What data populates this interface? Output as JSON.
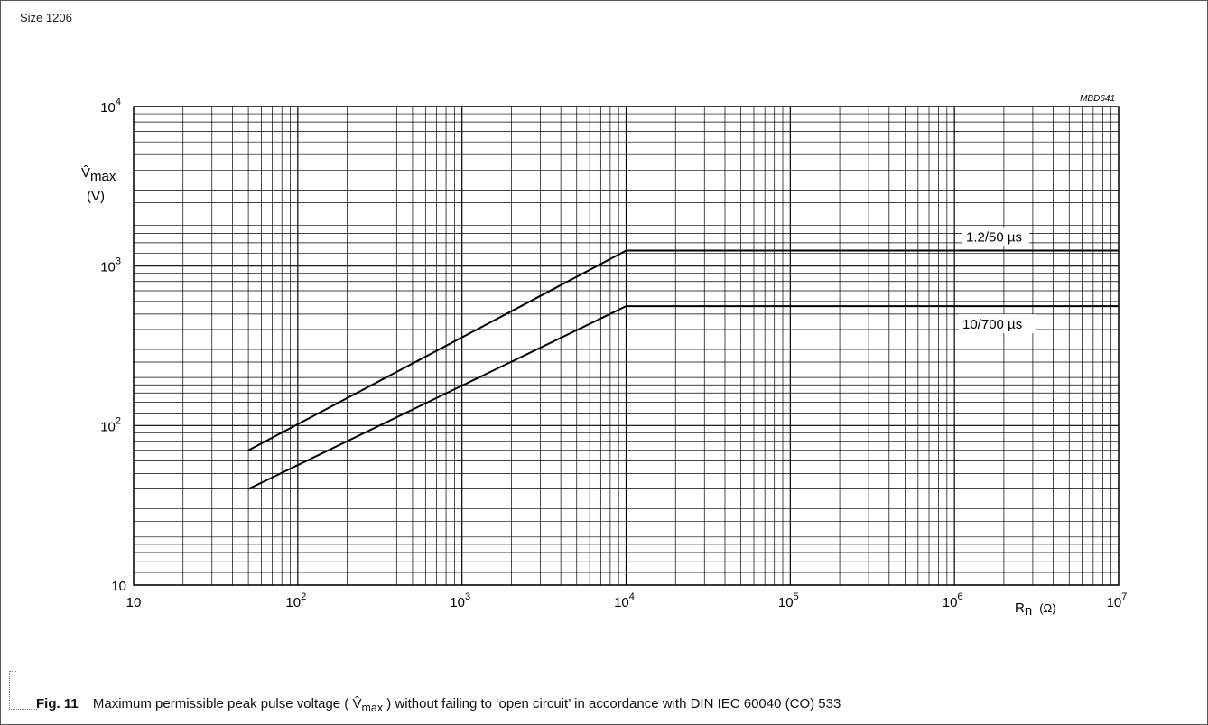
{
  "header": {
    "size_label": "Size 1206"
  },
  "chart_data": {
    "type": "line",
    "code": "MBD641",
    "xscale": "log",
    "yscale": "log",
    "xlim": [
      10,
      10000000
    ],
    "ylim": [
      10,
      10000
    ],
    "grid": true,
    "ylabel_symbol": "V̂",
    "ylabel_sub": "max",
    "ylabel_unit": "(V)",
    "xlabel_symbol": "R",
    "xlabel_sub": "n",
    "xlabel_unit": "(Ω)",
    "x_ticks": [
      {
        "value": 10,
        "base": "10",
        "exp": ""
      },
      {
        "value": 100,
        "base": "10",
        "exp": "2"
      },
      {
        "value": 1000,
        "base": "10",
        "exp": "3"
      },
      {
        "value": 10000,
        "base": "10",
        "exp": "4"
      },
      {
        "value": 100000,
        "base": "10",
        "exp": "5"
      },
      {
        "value": 1000000,
        "base": "10",
        "exp": "6"
      },
      {
        "value": 10000000,
        "base": "10",
        "exp": "7"
      }
    ],
    "y_ticks": [
      {
        "value": 10,
        "base": "10",
        "exp": ""
      },
      {
        "value": 100,
        "base": "10",
        "exp": "2"
      },
      {
        "value": 1000,
        "base": "10",
        "exp": "3"
      },
      {
        "value": 10000,
        "base": "10",
        "exp": "4"
      }
    ],
    "series": [
      {
        "name": "1.2/50 µs",
        "x": [
          50,
          10000,
          10000000
        ],
        "y": [
          70,
          1250,
          1250
        ]
      },
      {
        "name": "10/700 µs",
        "x": [
          50,
          10000,
          10000000
        ],
        "y": [
          40,
          560,
          560
        ]
      }
    ]
  },
  "caption": {
    "fig": "Fig. 11",
    "text_before": "Maximum permissible peak pulse voltage (",
    "symbol": "V̂",
    "symbol_sub": "max",
    "text_after": ")  without failing to ‘open circuit’ in accordance with DIN IEC 60040 (CO) 533"
  }
}
